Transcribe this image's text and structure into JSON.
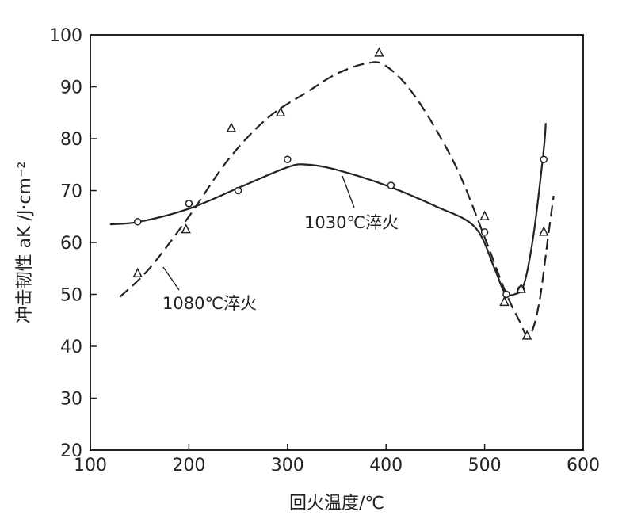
{
  "chart_data": {
    "type": "line",
    "xlabel": "回火温度/℃",
    "ylabel": "冲击韧性 aK /J·cm⁻²",
    "xlim": [
      100,
      600
    ],
    "ylim": [
      20,
      100
    ],
    "xticks": [
      100,
      200,
      300,
      400,
      500,
      600
    ],
    "yticks": [
      20,
      30,
      40,
      50,
      60,
      70,
      80,
      90,
      100
    ],
    "grid": false,
    "series": [
      {
        "name": "1030℃淬火",
        "line_style": "solid",
        "marker": "circle",
        "curve": [
          [
            120,
            63.5
          ],
          [
            150,
            64
          ],
          [
            200,
            66.5
          ],
          [
            250,
            70.5
          ],
          [
            300,
            74.5
          ],
          [
            320,
            75
          ],
          [
            350,
            74
          ],
          [
            400,
            71
          ],
          [
            450,
            67
          ],
          [
            490,
            63
          ],
          [
            510,
            55
          ],
          [
            520,
            50.5
          ],
          [
            530,
            50
          ],
          [
            540,
            52
          ],
          [
            550,
            62
          ],
          [
            560,
            78
          ],
          [
            562,
            83
          ]
        ],
        "points": [
          [
            148,
            64
          ],
          [
            200,
            67.5
          ],
          [
            250,
            70
          ],
          [
            300,
            76
          ],
          [
            405,
            71
          ],
          [
            500,
            62
          ],
          [
            522,
            50
          ],
          [
            537,
            51
          ],
          [
            560,
            76
          ]
        ]
      },
      {
        "name": "1080℃淬火",
        "line_style": "dashed",
        "marker": "triangle",
        "curve": [
          [
            130,
            49.5
          ],
          [
            160,
            55
          ],
          [
            200,
            65
          ],
          [
            240,
            76
          ],
          [
            280,
            84
          ],
          [
            320,
            89
          ],
          [
            350,
            92.5
          ],
          [
            380,
            94.5
          ],
          [
            400,
            94
          ],
          [
            430,
            88
          ],
          [
            470,
            75
          ],
          [
            500,
            61
          ],
          [
            520,
            51
          ],
          [
            535,
            45
          ],
          [
            545,
            42
          ],
          [
            555,
            48
          ],
          [
            565,
            62
          ],
          [
            570,
            69
          ]
        ],
        "points": [
          [
            148,
            54
          ],
          [
            197,
            62.5
          ],
          [
            243,
            82
          ],
          [
            293,
            85
          ],
          [
            393,
            96.5
          ],
          [
            500,
            65
          ],
          [
            520,
            48.5
          ],
          [
            537,
            51
          ],
          [
            543,
            42
          ],
          [
            560,
            62
          ]
        ]
      }
    ],
    "annotations": [
      {
        "text": "1030℃淬火",
        "series": "1030℃淬火"
      },
      {
        "text": "1080℃淬火",
        "series": "1080℃淬火"
      }
    ]
  }
}
